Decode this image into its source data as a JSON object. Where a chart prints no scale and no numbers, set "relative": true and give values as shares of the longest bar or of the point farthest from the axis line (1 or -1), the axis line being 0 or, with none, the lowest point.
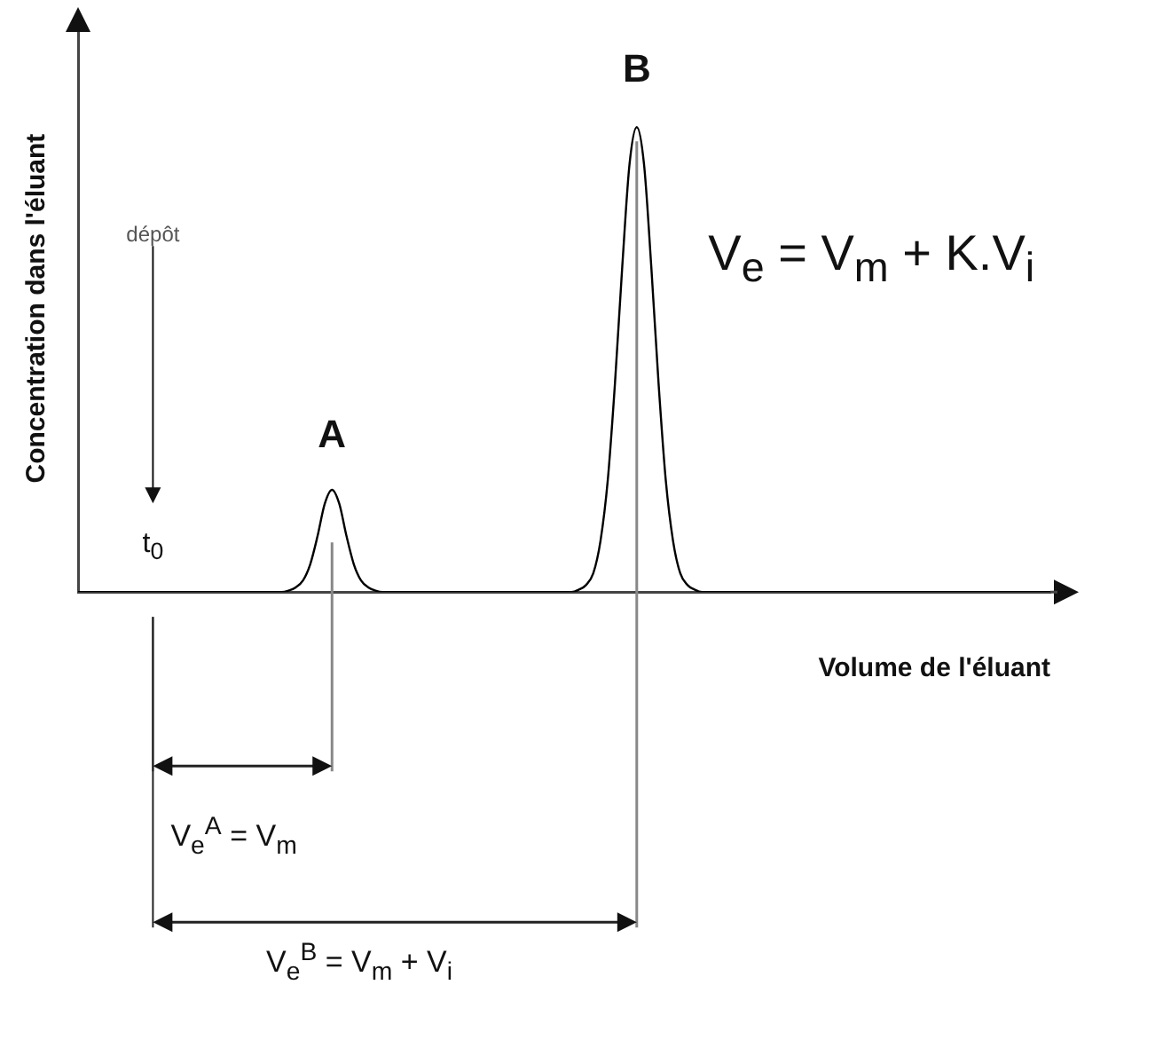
{
  "chart_data": {
    "type": "line",
    "relative": true,
    "ylabel": "Concentration dans l'éluant",
    "xlabel": "Volume de l'éluant",
    "color": "#000000",
    "grid": false,
    "legend": false,
    "marker": "none",
    "categories": [
      null,
      null,
      null,
      null,
      null,
      null,
      null,
      null,
      null,
      null,
      null,
      null,
      null,
      null,
      null,
      null,
      null,
      null,
      null,
      null,
      null,
      null,
      null,
      null,
      null,
      null,
      null,
      null,
      null,
      null,
      null,
      null,
      null,
      null,
      null,
      null,
      null,
      null,
      null,
      null,
      null,
      null,
      null,
      null,
      null,
      null,
      null,
      null,
      null,
      null,
      null,
      null,
      null,
      null,
      null,
      null,
      null,
      null,
      null,
      null,
      null,
      null,
      null,
      null,
      null,
      null,
      null,
      null,
      null,
      null,
      null,
      null,
      null,
      null,
      null,
      null,
      null,
      null,
      null,
      null,
      null,
      null,
      null,
      null,
      null,
      null,
      null,
      null,
      null,
      null,
      null,
      null,
      null,
      null,
      null,
      null,
      null,
      null,
      null,
      null,
      null,
      null,
      null,
      null,
      null,
      null,
      null,
      null,
      null,
      null,
      null,
      null,
      null,
      null,
      null,
      null,
      null,
      null,
      null,
      null,
      null,
      null,
      null,
      null,
      null,
      null,
      null,
      null,
      null,
      null,
      null,
      null,
      null,
      null,
      null
    ],
    "values": [
      0,
      0,
      0,
      0,
      0,
      0,
      0,
      0,
      0,
      0,
      0,
      0,
      0,
      0,
      0,
      0,
      0,
      0,
      0,
      0,
      0,
      0,
      0,
      0,
      0,
      0,
      0,
      0,
      0,
      0.003,
      0.01,
      0.025,
      0.06,
      0.12,
      0.19,
      0.22,
      0.19,
      0.12,
      0.06,
      0.025,
      0.01,
      0.003,
      0,
      0,
      0,
      0,
      0,
      0,
      0,
      0,
      0,
      0,
      0,
      0,
      0,
      0,
      0,
      0,
      0,
      0,
      0,
      0,
      0,
      0,
      0,
      0,
      0,
      0,
      0,
      0.005,
      0.015,
      0.04,
      0.11,
      0.24,
      0.45,
      0.7,
      0.92,
      1,
      0.92,
      0.7,
      0.45,
      0.24,
      0.11,
      0.04,
      0.015,
      0.005,
      0,
      0,
      0,
      0,
      0,
      0,
      0,
      0,
      0,
      0,
      0,
      0,
      0,
      0,
      0,
      0,
      0,
      0,
      0,
      0,
      0,
      0,
      0,
      0,
      0,
      0,
      0,
      0,
      0,
      0,
      0,
      0,
      0,
      0,
      0,
      0,
      0,
      0,
      0,
      0,
      0,
      0,
      0,
      0,
      0,
      0,
      0,
      0,
      0
    ],
    "annotations": [
      "dépôt",
      "t$_{0}$",
      "A",
      "B",
      "V$_{e}$ = V$_{m}$ + K.V$_{i}$",
      "V$_{e}$$^{A}$ = V$_{m}$",
      "V$_{e}$$^{B}$ = V$_{m}$ + V$_{i}$"
    ]
  }
}
